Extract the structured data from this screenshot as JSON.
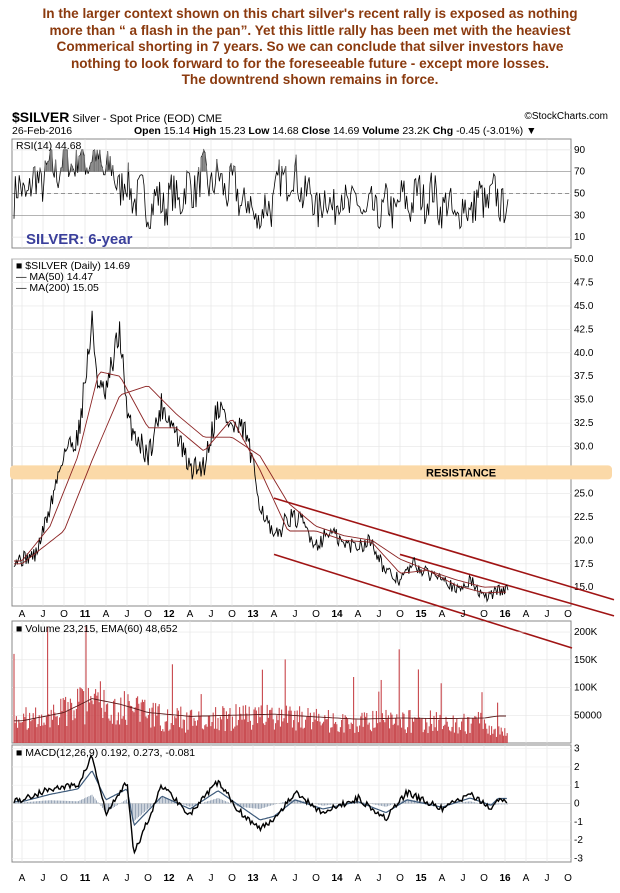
{
  "headline_lines": [
    "In the larger context shown on this chart silver's recent rally is exposed as nothing",
    "more than “ a flash in the pan”. Yet this little rally has been met with the heaviest",
    "Commerical shorting in 7 years. So we can conclude that silver investors have",
    "nothing to look forward to for the foreseeable future - except more losses.",
    "The downtrend shown remains in force."
  ],
  "header": {
    "symbol": "$SILVER",
    "description": "Silver - Spot Price (EOD)",
    "exchange": "CME",
    "watermark": "©StockCharts.com",
    "date": "26-Feb-2016",
    "open_label": "Open",
    "open": "15.14",
    "high_label": "High",
    "high": "15.23",
    "low_label": "Low",
    "low": "14.68",
    "close_label": "Close",
    "close": "14.69",
    "volume_label": "Volume",
    "volume": "23.2K",
    "chg_label": "Chg",
    "chg": "-0.45 (-3.01%)",
    "chg_arrow": "▼"
  },
  "colors": {
    "headline": "#8b3a0e",
    "price": "#000000",
    "ma": "#8b2323",
    "channel": "#a01414",
    "resistance_band": "#fbd9a8",
    "volume_bar": "#c8464b",
    "rsi_line": "#000000",
    "rsi_fill": "#777777",
    "macd_line": "#000000",
    "signal_line": "#3d5a7a",
    "title_blue": "#3a3f9b"
  },
  "chart_data": [
    {
      "type": "line",
      "panel": "rsi",
      "title": "RSI(14) 44.68",
      "y_ticks": [
        90,
        70,
        50,
        30,
        10
      ],
      "ylim": [
        0,
        100
      ],
      "overbought": 70,
      "oversold": 30,
      "annotation": "SILVER: 6-year",
      "approx_series": {
        "x": [
          "2010-06",
          "2010-09",
          "2010-12",
          "2011-04",
          "2011-08",
          "2011-12",
          "2012-04",
          "2012-08",
          "2012-12",
          "2013-04",
          "2013-08",
          "2013-12",
          "2014-04",
          "2014-08",
          "2014-12",
          "2015-04",
          "2015-08",
          "2015-12",
          "2016-02"
        ],
        "values": [
          50,
          65,
          80,
          85,
          60,
          40,
          45,
          65,
          55,
          25,
          70,
          40,
          45,
          30,
          40,
          50,
          30,
          45,
          44.68
        ]
      }
    },
    {
      "type": "line",
      "panel": "price",
      "title": "$SILVER (Daily) 14.69",
      "series": [
        {
          "name": "$SILVER (Daily) 14.69",
          "x": [
            "2010-06",
            "2010-08",
            "2010-10",
            "2010-12",
            "2011-02",
            "2011-04",
            "2011-05",
            "2011-06",
            "2011-08",
            "2011-09",
            "2011-10",
            "2011-12",
            "2012-02",
            "2012-04",
            "2012-06",
            "2012-08",
            "2012-10",
            "2012-12",
            "2013-02",
            "2013-04",
            "2013-06",
            "2013-08",
            "2013-10",
            "2013-12",
            "2014-02",
            "2014-04",
            "2014-06",
            "2014-08",
            "2014-10",
            "2014-12",
            "2015-02",
            "2015-04",
            "2015-06",
            "2015-08",
            "2015-10",
            "2015-12",
            "2016-02"
          ],
          "values": [
            18.0,
            18.5,
            23.5,
            29.5,
            31.0,
            43.0,
            36.0,
            35.5,
            42.5,
            33.0,
            31.5,
            29.0,
            34.5,
            31.5,
            27.5,
            28.0,
            34.5,
            32.0,
            31.5,
            24.0,
            20.0,
            22.5,
            22.0,
            19.5,
            21.0,
            19.5,
            19.5,
            20.0,
            16.5,
            15.8,
            17.5,
            16.3,
            16.5,
            14.5,
            15.8,
            13.8,
            14.69
          ]
        },
        {
          "name": "MA(50) 14.47",
          "x": [
            "2010-06",
            "2010-10",
            "2011-02",
            "2011-05",
            "2011-08",
            "2011-12",
            "2012-04",
            "2012-08",
            "2012-12",
            "2013-04",
            "2013-08",
            "2013-12",
            "2014-04",
            "2014-08",
            "2014-12",
            "2015-04",
            "2015-08",
            "2015-12",
            "2016-02"
          ],
          "values": [
            17.8,
            21.5,
            29.0,
            38.0,
            37.5,
            32.0,
            32.0,
            29.5,
            33.0,
            27.5,
            21.0,
            21.0,
            20.0,
            19.8,
            16.5,
            16.8,
            15.2,
            14.4,
            14.47
          ]
        },
        {
          "name": "MA(200) 15.05",
          "x": [
            "2010-06",
            "2010-12",
            "2011-04",
            "2011-08",
            "2011-12",
            "2012-04",
            "2012-08",
            "2012-12",
            "2013-04",
            "2013-08",
            "2013-12",
            "2014-04",
            "2014-08",
            "2014-12",
            "2015-04",
            "2015-08",
            "2015-12",
            "2016-02"
          ],
          "values": [
            17.5,
            21.0,
            28.5,
            35.5,
            36.5,
            33.5,
            31.0,
            31.0,
            29.0,
            24.0,
            21.5,
            20.5,
            20.0,
            18.0,
            16.8,
            15.8,
            15.0,
            15.05
          ]
        }
      ],
      "y_ticks": [
        50.0,
        47.5,
        45.0,
        42.5,
        40.0,
        37.5,
        35.0,
        32.5,
        30.0,
        27.5,
        25.0,
        22.5,
        20.0,
        17.5,
        15.0
      ],
      "ylim": [
        13.0,
        50.0
      ],
      "x_ticks": [
        "A",
        "J",
        "O",
        "11",
        "A",
        "J",
        "O",
        "12",
        "A",
        "J",
        "O",
        "13",
        "A",
        "J",
        "O",
        "14",
        "A",
        "J",
        "O",
        "15",
        "A",
        "J",
        "O",
        "16",
        "A",
        "J",
        "O"
      ],
      "resistance_band": {
        "label": "RESISTANCE",
        "low": 26.5,
        "high": 28.0
      },
      "channel": {
        "upper": {
          "x": [
            "2013-06",
            "2016-09"
          ],
          "values": [
            24.5,
            15.8
          ]
        },
        "middle": {
          "x": [
            "2014-12",
            "2016-09"
          ],
          "values": [
            18.5,
            14.0
          ]
        },
        "lower": {
          "x": [
            "2013-06",
            "2016-09"
          ],
          "values": [
            18.5,
            11.0
          ]
        }
      }
    },
    {
      "type": "bar",
      "panel": "volume",
      "title": "Volume 23,215, EMA(60) 48,652",
      "y_ticks": [
        "200K",
        "150K",
        "100K",
        "50000"
      ],
      "ylim": [
        0,
        220000
      ],
      "approx_series": {
        "x": [
          "2010-06",
          "2010-12",
          "2011-04",
          "2011-08",
          "2011-12",
          "2012-06",
          "2012-12",
          "2013-06",
          "2013-12",
          "2014-06",
          "2014-12",
          "2015-06",
          "2015-12",
          "2016-02"
        ],
        "values": [
          45000,
          60000,
          90000,
          70000,
          55000,
          45000,
          50000,
          55000,
          45000,
          40000,
          45000,
          42000,
          40000,
          23215
        ],
        "ema_values": [
          40000,
          55000,
          80000,
          70000,
          55000,
          48000,
          50000,
          52000,
          47000,
          43000,
          45000,
          44000,
          45000,
          48652
        ]
      }
    },
    {
      "type": "line",
      "panel": "macd",
      "title": "MACD(12,26,9) 0.192, 0.273, -0.081",
      "y_ticks": [
        3,
        2,
        1,
        0,
        -1,
        -2,
        -3
      ],
      "ylim": [
        -3.2,
        3.2
      ],
      "approx_series": {
        "x": [
          "2010-06",
          "2010-10",
          "2011-02",
          "2011-04",
          "2011-06",
          "2011-09",
          "2011-10",
          "2012-02",
          "2012-06",
          "2012-10",
          "2013-01",
          "2013-04",
          "2013-06",
          "2013-09",
          "2014-01",
          "2014-06",
          "2014-10",
          "2015-01",
          "2015-06",
          "2015-10",
          "2016-01",
          "2016-02"
        ],
        "macd": [
          0.2,
          0.8,
          1.0,
          2.6,
          -0.6,
          1.2,
          -2.8,
          1.0,
          -0.6,
          1.2,
          -0.4,
          -1.4,
          -0.8,
          0.6,
          -0.5,
          0.3,
          -0.8,
          0.6,
          -0.3,
          0.5,
          -0.3,
          0.192
        ],
        "signal": [
          0.1,
          0.5,
          0.8,
          1.8,
          0.2,
          0.8,
          -1.2,
          0.4,
          -0.3,
          0.7,
          -0.1,
          -0.9,
          -0.7,
          0.2,
          -0.3,
          0.1,
          -0.5,
          0.2,
          -0.2,
          0.3,
          -0.1,
          0.273
        ]
      }
    }
  ]
}
